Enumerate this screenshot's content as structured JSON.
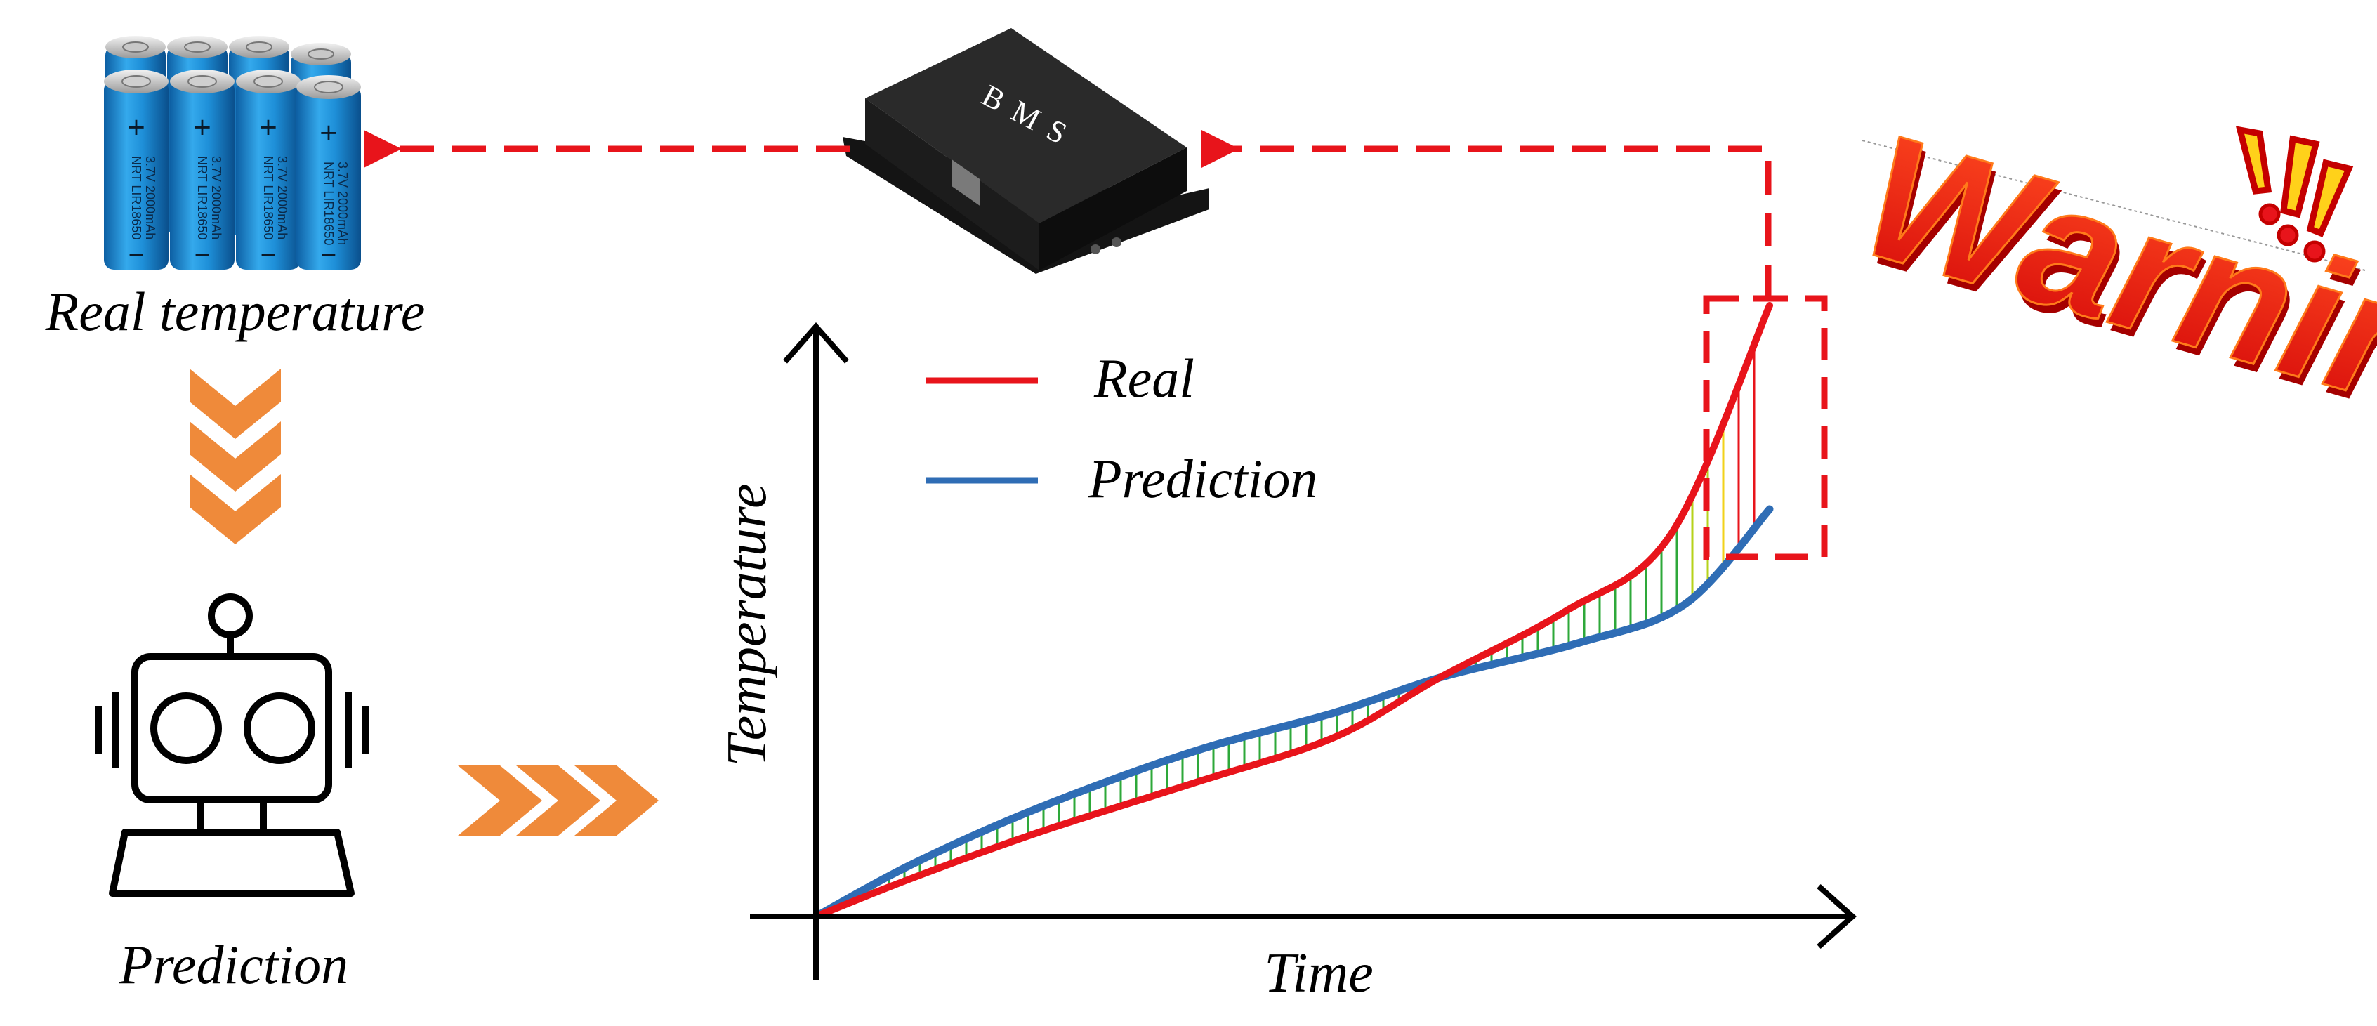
{
  "labels": {
    "real_temperature": "Real temperature",
    "prediction_bottom": "Prediction",
    "bms": "BMS",
    "warning": "Warning",
    "legend_real": "Real",
    "legend_prediction": "Prediction",
    "axis_y": "Temperature",
    "axis_x": "Time"
  },
  "battery_cells": [
    {
      "text": "NRT LIR18650",
      "sub": "3.7V 2000mAh"
    },
    {
      "text": "NRT LIR18650",
      "sub": "3.7V 2000mAh"
    },
    {
      "text": "NRT LIR18650",
      "sub": "3.7V 2000mAh"
    },
    {
      "text": "NRT LIR18650",
      "sub": "3.7V 2000mAh"
    }
  ],
  "colors": {
    "real": "#e8141b",
    "prediction": "#2f6db5",
    "arrow_orange": "#ef8a3a",
    "dashed_red": "#e8141b",
    "battery_blue": "#1f8fd6",
    "warning_red": "#f21d10"
  },
  "icons": [
    "battery-pack-icon",
    "bms-device-icon",
    "robot-icon",
    "warning-exclamation-icon"
  ]
}
